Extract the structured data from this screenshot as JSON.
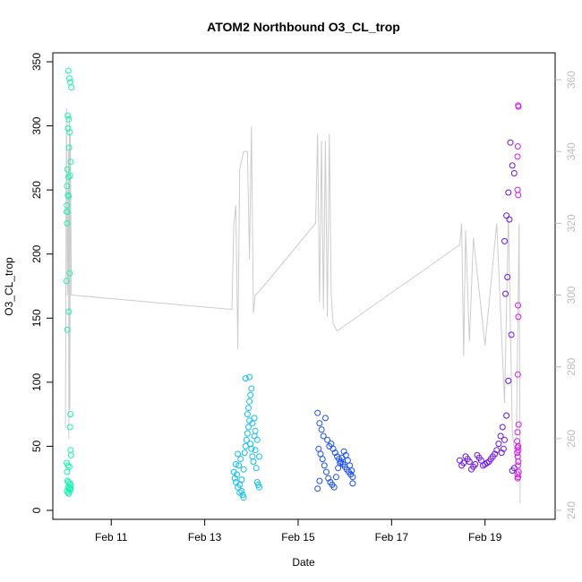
{
  "chart_data": {
    "type": "scatter",
    "title": "ATOM2 Northbound O3_CL_trop",
    "xlabel": "Date",
    "ylabel": "O3_CL_trop",
    "ylim": [
      0,
      350
    ],
    "y2lim": [
      240,
      365
    ],
    "xlim": [
      "2017-02-09T18:00",
      "2017-02-20T12:00"
    ],
    "x_ticks": [
      {
        "label": "Feb 11",
        "date": "2017-02-11T00:00"
      },
      {
        "label": "Feb 13",
        "date": "2017-02-13T00:00"
      },
      {
        "label": "Feb 15",
        "date": "2017-02-15T00:00"
      },
      {
        "label": "Feb 17",
        "date": "2017-02-17T00:00"
      },
      {
        "label": "Feb 19",
        "date": "2017-02-19T00:00"
      }
    ],
    "y_ticks": [
      0,
      50,
      100,
      150,
      200,
      250,
      300,
      350
    ],
    "y2_ticks": [
      240,
      260,
      280,
      300,
      320,
      340,
      360
    ],
    "colors": {
      "line": "#cccccc",
      "right_axis": "#bdbdbd",
      "flights": [
        "#19f5b0",
        "#12bff2",
        "#1a4ff0",
        "#6a12ee",
        "#d41ee6"
      ]
    },
    "series": [
      {
        "color": "#19f5b0",
        "points": [
          [
            "2017-02-10T02:00",
            343
          ],
          [
            "2017-02-10T02:30",
            337
          ],
          [
            "2017-02-10T03:00",
            334
          ],
          [
            "2017-02-10T03:30",
            330
          ],
          [
            "2017-02-10T01:40",
            308
          ],
          [
            "2017-02-10T02:10",
            305
          ],
          [
            "2017-02-10T02:40",
            295
          ],
          [
            "2017-02-10T01:50",
            298
          ],
          [
            "2017-02-10T02:20",
            283
          ],
          [
            "2017-02-10T03:10",
            272
          ],
          [
            "2017-02-10T01:30",
            266
          ],
          [
            "2017-02-10T02:50",
            261
          ],
          [
            "2017-02-10T02:00",
            260
          ],
          [
            "2017-02-10T01:20",
            253
          ],
          [
            "2017-02-10T01:45",
            246
          ],
          [
            "2017-02-10T02:05",
            245
          ],
          [
            "2017-02-10T01:15",
            238
          ],
          [
            "2017-02-10T01:10",
            233
          ],
          [
            "2017-02-10T01:25",
            233
          ],
          [
            "2017-02-10T01:20",
            224
          ],
          [
            "2017-02-10T02:40",
            185
          ],
          [
            "2017-02-10T01:05",
            179
          ],
          [
            "2017-02-10T02:15",
            155
          ],
          [
            "2017-02-10T01:30",
            141
          ],
          [
            "2017-02-10T03:00",
            75
          ],
          [
            "2017-02-10T02:50",
            65
          ],
          [
            "2017-02-10T03:05",
            47
          ],
          [
            "2017-02-10T03:20",
            43
          ],
          [
            "2017-02-10T01:10",
            37
          ],
          [
            "2017-02-10T01:40",
            35
          ],
          [
            "2017-02-10T02:30",
            34
          ],
          [
            "2017-02-10T01:20",
            30
          ],
          [
            "2017-02-10T01:30",
            23
          ],
          [
            "2017-02-10T02:00",
            22
          ],
          [
            "2017-02-10T02:45",
            21
          ],
          [
            "2017-02-10T03:15",
            20
          ],
          [
            "2017-02-10T01:50",
            18
          ],
          [
            "2017-02-10T02:20",
            17
          ],
          [
            "2017-02-10T03:00",
            16
          ],
          [
            "2017-02-10T01:15",
            15
          ],
          [
            "2017-02-10T01:45",
            14
          ],
          [
            "2017-02-10T02:10",
            13
          ],
          [
            "2017-02-10T02:35",
            18
          ],
          [
            "2017-02-10T03:10",
            17
          ]
        ]
      },
      {
        "color": "#12bff2",
        "points": [
          [
            "2017-02-13T15:00",
            30
          ],
          [
            "2017-02-13T15:30",
            25
          ],
          [
            "2017-02-13T16:00",
            22
          ],
          [
            "2017-02-13T16:30",
            28
          ],
          [
            "2017-02-13T17:00",
            18
          ],
          [
            "2017-02-13T17:30",
            35
          ],
          [
            "2017-02-13T18:00",
            20
          ],
          [
            "2017-02-13T18:30",
            40
          ],
          [
            "2017-02-13T19:00",
            15
          ],
          [
            "2017-02-13T19:30",
            12
          ],
          [
            "2017-02-13T20:00",
            10
          ],
          [
            "2017-02-13T20:30",
            45
          ],
          [
            "2017-02-13T21:00",
            50
          ],
          [
            "2017-02-13T21:30",
            55
          ],
          [
            "2017-02-13T22:00",
            60
          ],
          [
            "2017-02-13T22:30",
            65
          ],
          [
            "2017-02-13T23:00",
            70
          ],
          [
            "2017-02-13T23:30",
            52
          ],
          [
            "2017-02-14T00:00",
            48
          ],
          [
            "2017-02-14T00:30",
            42
          ],
          [
            "2017-02-14T01:00",
            38
          ],
          [
            "2017-02-14T01:30",
            58
          ],
          [
            "2017-02-14T02:00",
            62
          ],
          [
            "2017-02-14T02:30",
            33
          ],
          [
            "2017-02-14T03:00",
            22
          ],
          [
            "2017-02-14T03:30",
            20
          ],
          [
            "2017-02-14T04:00",
            18
          ],
          [
            "2017-02-13T22:00",
            75
          ],
          [
            "2017-02-13T22:30",
            80
          ],
          [
            "2017-02-13T23:00",
            85
          ],
          [
            "2017-02-13T23:30",
            90
          ],
          [
            "2017-02-14T00:00",
            95
          ],
          [
            "2017-02-13T21:00",
            103
          ],
          [
            "2017-02-13T23:00",
            104
          ],
          [
            "2017-02-14T00:30",
            68
          ],
          [
            "2017-02-14T01:30",
            72
          ],
          [
            "2017-02-13T18:00",
            14
          ],
          [
            "2017-02-13T19:00",
            24
          ],
          [
            "2017-02-13T20:00",
            32
          ],
          [
            "2017-02-14T02:00",
            47
          ],
          [
            "2017-02-14T03:00",
            55
          ],
          [
            "2017-02-14T04:00",
            42
          ],
          [
            "2017-02-13T16:00",
            36
          ],
          [
            "2017-02-13T17:00",
            44
          ]
        ]
      },
      {
        "color": "#1a4ff0",
        "points": [
          [
            "2017-02-15T10:00",
            76
          ],
          [
            "2017-02-15T11:00",
            68
          ],
          [
            "2017-02-15T12:00",
            63
          ],
          [
            "2017-02-15T13:00",
            58
          ],
          [
            "2017-02-15T14:00",
            72
          ],
          [
            "2017-02-15T15:00",
            55
          ],
          [
            "2017-02-15T16:00",
            50
          ],
          [
            "2017-02-15T17:00",
            52
          ],
          [
            "2017-02-15T18:00",
            48
          ],
          [
            "2017-02-15T19:00",
            45
          ],
          [
            "2017-02-15T20:00",
            42
          ],
          [
            "2017-02-15T21:00",
            40
          ],
          [
            "2017-02-15T22:00",
            38
          ],
          [
            "2017-02-15T23:00",
            36
          ],
          [
            "2017-02-16T00:00",
            34
          ],
          [
            "2017-02-16T01:00",
            32
          ],
          [
            "2017-02-16T02:00",
            30
          ],
          [
            "2017-02-16T03:00",
            28
          ],
          [
            "2017-02-16T04:00",
            26
          ],
          [
            "2017-02-15T11:30",
            44
          ],
          [
            "2017-02-15T12:30",
            40
          ],
          [
            "2017-02-15T13:30",
            35
          ],
          [
            "2017-02-15T14:30",
            30
          ],
          [
            "2017-02-15T15:30",
            25
          ],
          [
            "2017-02-15T16:30",
            22
          ],
          [
            "2017-02-15T17:30",
            20
          ],
          [
            "2017-02-15T18:30",
            18
          ],
          [
            "2017-02-15T19:30",
            26
          ],
          [
            "2017-02-15T20:30",
            33
          ],
          [
            "2017-02-15T21:30",
            37
          ],
          [
            "2017-02-15T22:30",
            41
          ],
          [
            "2017-02-15T23:30",
            46
          ],
          [
            "2017-02-16T00:30",
            43
          ],
          [
            "2017-02-16T01:30",
            39
          ],
          [
            "2017-02-16T02:30",
            35
          ],
          [
            "2017-02-16T03:30",
            31
          ],
          [
            "2017-02-15T10:30",
            48
          ],
          [
            "2017-02-15T10:00",
            17
          ],
          [
            "2017-02-15T11:00",
            23
          ],
          [
            "2017-02-16T04:00",
            21
          ]
        ]
      },
      {
        "color": "#6a12ee",
        "points": [
          [
            "2017-02-19T13:00",
            287
          ],
          [
            "2017-02-19T14:00",
            269
          ],
          [
            "2017-02-19T15:00",
            263
          ],
          [
            "2017-02-19T12:00",
            248
          ],
          [
            "2017-02-19T11:00",
            230
          ],
          [
            "2017-02-19T12:30",
            227
          ],
          [
            "2017-02-19T10:00",
            210
          ],
          [
            "2017-02-19T11:30",
            182
          ],
          [
            "2017-02-19T10:30",
            169
          ],
          [
            "2017-02-19T13:30",
            137
          ],
          [
            "2017-02-19T12:00",
            101
          ],
          [
            "2017-02-19T11:00",
            74
          ],
          [
            "2017-02-19T09:00",
            65
          ],
          [
            "2017-02-19T08:00",
            58
          ],
          [
            "2017-02-19T07:00",
            52
          ],
          [
            "2017-02-19T06:00",
            47
          ],
          [
            "2017-02-19T05:00",
            44
          ],
          [
            "2017-02-19T04:00",
            42
          ],
          [
            "2017-02-19T03:00",
            40
          ],
          [
            "2017-02-19T02:00",
            38
          ],
          [
            "2017-02-19T01:00",
            37
          ],
          [
            "2017-02-19T00:00",
            36
          ],
          [
            "2017-02-18T23:00",
            35
          ],
          [
            "2017-02-18T22:00",
            39
          ],
          [
            "2017-02-18T21:00",
            41
          ],
          [
            "2017-02-18T20:00",
            43
          ],
          [
            "2017-02-18T19:00",
            36
          ],
          [
            "2017-02-18T18:00",
            34
          ],
          [
            "2017-02-18T17:00",
            32
          ],
          [
            "2017-02-18T16:00",
            38
          ],
          [
            "2017-02-18T15:00",
            40
          ],
          [
            "2017-02-18T14:00",
            42
          ],
          [
            "2017-02-18T13:00",
            37
          ],
          [
            "2017-02-18T12:00",
            35
          ],
          [
            "2017-02-18T11:00",
            39
          ],
          [
            "2017-02-19T10:00",
            55
          ],
          [
            "2017-02-19T14:00",
            31
          ],
          [
            "2017-02-19T15:00",
            33
          ],
          [
            "2017-02-19T09:30",
            48
          ],
          [
            "2017-02-19T08:30",
            45
          ]
        ]
      },
      {
        "color": "#d41ee6",
        "points": [
          [
            "2017-02-19T17:00",
            316
          ],
          [
            "2017-02-19T17:10",
            315
          ],
          [
            "2017-02-19T16:50",
            284
          ],
          [
            "2017-02-19T16:40",
            276
          ],
          [
            "2017-02-19T16:45",
            250
          ],
          [
            "2017-02-19T17:00",
            246
          ],
          [
            "2017-02-19T16:55",
            160
          ],
          [
            "2017-02-19T17:05",
            151
          ],
          [
            "2017-02-19T16:50",
            106
          ],
          [
            "2017-02-19T17:15",
            67
          ],
          [
            "2017-02-19T16:40",
            61
          ],
          [
            "2017-02-19T16:30",
            54
          ],
          [
            "2017-02-19T17:00",
            50
          ],
          [
            "2017-02-19T16:45",
            49
          ],
          [
            "2017-02-19T17:10",
            47
          ],
          [
            "2017-02-19T16:35",
            45
          ],
          [
            "2017-02-19T16:50",
            42
          ],
          [
            "2017-02-19T17:05",
            38
          ],
          [
            "2017-02-19T16:55",
            35
          ],
          [
            "2017-02-19T17:15",
            30
          ],
          [
            "2017-02-19T16:40",
            28
          ],
          [
            "2017-02-19T17:00",
            26
          ],
          [
            "2017-02-19T16:45",
            25
          ]
        ]
      }
    ],
    "altitude_line": {
      "axis": "right",
      "points": [
        [
          "2017-02-10T00:30",
          263
        ],
        [
          "2017-02-10T01:00",
          352
        ],
        [
          "2017-02-10T01:30",
          300
        ],
        [
          "2017-02-10T02:00",
          340
        ],
        [
          "2017-02-10T02:15",
          260
        ],
        [
          "2017-02-10T02:30",
          350
        ],
        [
          "2017-02-10T02:45",
          268
        ],
        [
          "2017-02-10T03:00",
          345
        ],
        [
          "2017-02-10T03:30",
          300
        ],
        [
          "2017-02-13T14:00",
          296
        ],
        [
          "2017-02-13T15:00",
          320
        ],
        [
          "2017-02-13T16:00",
          325
        ],
        [
          "2017-02-13T17:00",
          285
        ],
        [
          "2017-02-13T18:00",
          335
        ],
        [
          "2017-02-13T20:00",
          340
        ],
        [
          "2017-02-13T22:00",
          340
        ],
        [
          "2017-02-13T23:00",
          310
        ],
        [
          "2017-02-14T00:00",
          347
        ],
        [
          "2017-02-14T01:00",
          295
        ],
        [
          "2017-02-14T02:00",
          300
        ],
        [
          "2017-02-14T04:00",
          301
        ],
        [
          "2017-02-15T09:00",
          320
        ],
        [
          "2017-02-15T10:00",
          345
        ],
        [
          "2017-02-15T11:00",
          298
        ],
        [
          "2017-02-15T12:00",
          343
        ],
        [
          "2017-02-15T13:00",
          296
        ],
        [
          "2017-02-15T14:00",
          343
        ],
        [
          "2017-02-15T15:00",
          294
        ],
        [
          "2017-02-15T16:00",
          345
        ],
        [
          "2017-02-15T17:00",
          300
        ],
        [
          "2017-02-15T18:00",
          292
        ],
        [
          "2017-02-15T20:00",
          290
        ],
        [
          "2017-02-18T11:00",
          314
        ],
        [
          "2017-02-18T12:00",
          320
        ],
        [
          "2017-02-18T13:00",
          283
        ],
        [
          "2017-02-18T14:00",
          318
        ],
        [
          "2017-02-18T16:00",
          287
        ],
        [
          "2017-02-18T18:00",
          316
        ],
        [
          "2017-02-19T00:00",
          286
        ],
        [
          "2017-02-19T06:00",
          320
        ],
        [
          "2017-02-19T10:00",
          270
        ],
        [
          "2017-02-19T12:00",
          322
        ],
        [
          "2017-02-19T14:00",
          262
        ],
        [
          "2017-02-19T16:00",
          252
        ],
        [
          "2017-02-19T16:30",
          278
        ],
        [
          "2017-02-19T17:30",
          320
        ],
        [
          "2017-02-19T18:00",
          242
        ]
      ]
    }
  }
}
